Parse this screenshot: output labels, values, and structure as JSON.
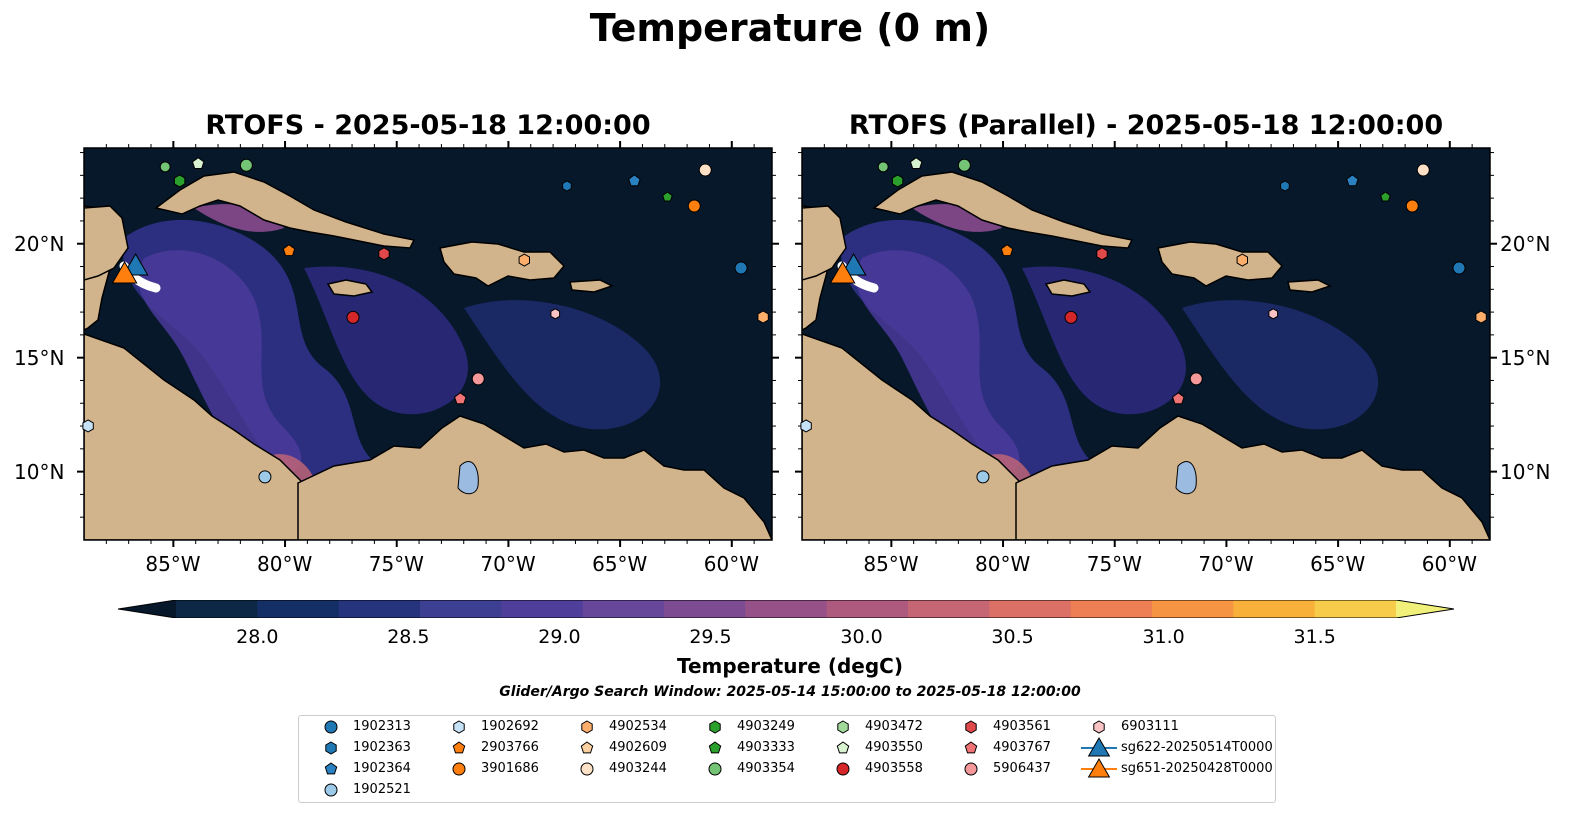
{
  "title": "Temperature (0 m)",
  "maps": [
    {
      "title": "RTOFS - 2025-05-18 12:00:00"
    },
    {
      "title": "RTOFS (Parallel) - 2025-05-18 12:00:00"
    }
  ],
  "axes": {
    "lon_ticks": [
      "85°W",
      "80°W",
      "75°W",
      "70°W",
      "65°W",
      "60°W"
    ],
    "lat_ticks": [
      "20°N",
      "15°N",
      "10°N"
    ]
  },
  "colorbar": {
    "label": "Temperature (degC)",
    "ticks": [
      "28.0",
      "28.5",
      "29.0",
      "29.5",
      "30.0",
      "30.5",
      "31.0",
      "31.5"
    ],
    "colors": [
      "#06182a",
      "#0d2846",
      "#142e66",
      "#26347e",
      "#3d3f93",
      "#503f9a",
      "#66479a",
      "#7d4b91",
      "#965288",
      "#ad5a7e",
      "#c66674",
      "#da7066",
      "#ee7f55",
      "#f59442",
      "#f8b03b",
      "#f6cc4a",
      "#f0f07a"
    ]
  },
  "colors": {
    "ocean_dark": "#06182a",
    "ocean_mid": "#241f6b",
    "land": "#d2b48c",
    "lake": "#9bbbe0"
  },
  "search_window": "Glider/Argo Search Window: 2025-05-14 15:00:00 to 2025-05-18 12:00:00",
  "legend": {
    "items": [
      {
        "label": "1902313",
        "color": "#1f77b4",
        "marker": "circle"
      },
      {
        "label": "1902363",
        "color": "#1f77b4",
        "marker": "hexagon"
      },
      {
        "label": "1902364",
        "color": "#2a81c2",
        "marker": "pentagon"
      },
      {
        "label": "1902521",
        "color": "#9ecae9",
        "marker": "circle"
      },
      {
        "label": "1902692",
        "color": "#c6e2f7",
        "marker": "hexagon"
      },
      {
        "label": "2903766",
        "color": "#ff7f0e",
        "marker": "pentagon"
      },
      {
        "label": "3901686",
        "color": "#ff7f0e",
        "marker": "circle"
      },
      {
        "label": "4902534",
        "color": "#fdae6b",
        "marker": "hexagon"
      },
      {
        "label": "4902609",
        "color": "#fdd0a2",
        "marker": "pentagon"
      },
      {
        "label": "4903244",
        "color": "#fde0c5",
        "marker": "circle"
      },
      {
        "label": "4903249",
        "color": "#2ca02c",
        "marker": "hexagon"
      },
      {
        "label": "4903333",
        "color": "#2ca02c",
        "marker": "pentagon"
      },
      {
        "label": "4903354",
        "color": "#74c476",
        "marker": "circle"
      },
      {
        "label": "4903472",
        "color": "#a1d99b",
        "marker": "hexagon"
      },
      {
        "label": "4903550",
        "color": "#d9f2d0",
        "marker": "pentagon"
      },
      {
        "label": "4903558",
        "color": "#d62728",
        "marker": "circle"
      },
      {
        "label": "4903561",
        "color": "#e0484a",
        "marker": "hexagon"
      },
      {
        "label": "4903767",
        "color": "#f07475",
        "marker": "pentagon"
      },
      {
        "label": "5906437",
        "color": "#f4989a",
        "marker": "circle"
      },
      {
        "label": "6903111",
        "color": "#f9c2c4",
        "marker": "hexagon"
      },
      {
        "label": "sg622-20250514T0000",
        "color": "#1f77b4",
        "marker": "triangle"
      },
      {
        "label": "sg651-20250428T0000",
        "color": "#ff7f0e",
        "marker": "triangle"
      }
    ]
  }
}
